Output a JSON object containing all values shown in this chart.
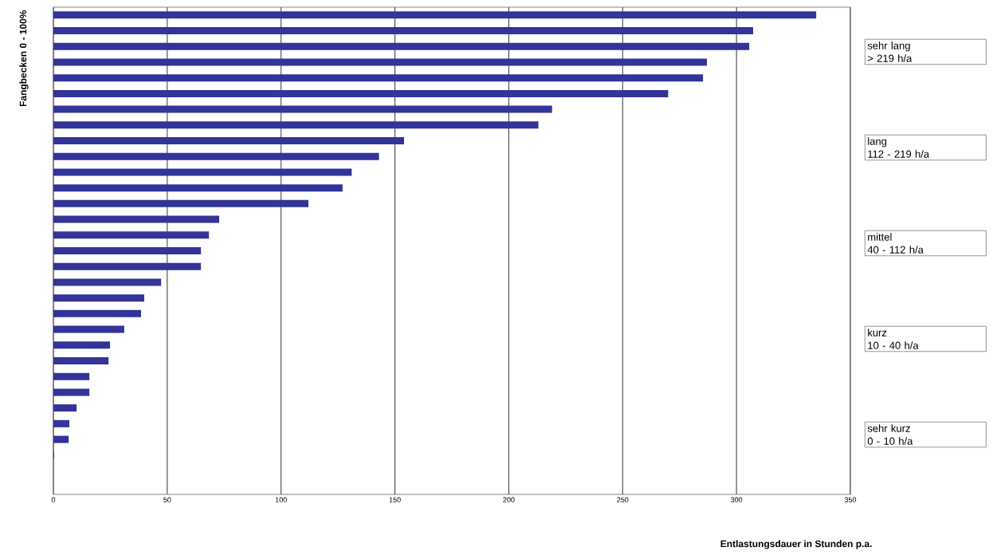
{
  "chart_data": {
    "type": "bar",
    "orientation": "horizontal",
    "xlabel": "Entlastungsdauer in Stunden p.a.",
    "ylabel": "Fangbecken 0 - 100%",
    "categories": [
      null,
      null,
      null,
      null,
      null,
      null,
      null,
      null,
      null,
      null,
      null,
      null,
      null,
      null,
      null,
      null,
      null,
      null,
      null,
      null,
      null,
      null,
      null,
      null,
      null,
      null,
      null,
      null,
      null,
      null,
      null
    ],
    "values": [
      335,
      307.3,
      305.6,
      287,
      285.3,
      270,
      219,
      213,
      154,
      143,
      131,
      127,
      112,
      72.8,
      68.3,
      64.8,
      64.8,
      47.3,
      39.9,
      38.5,
      31.1,
      24.9,
      24.2,
      15.8,
      15.8,
      10.2,
      7,
      6.7,
      0.3,
      0,
      0
    ],
    "color": "#333399",
    "xlim": [
      0,
      350
    ],
    "xticks": [
      0,
      50,
      100,
      150,
      200,
      250,
      300,
      350
    ],
    "grid": "x",
    "annotations": [
      "sehr lang\n> 219 h/a",
      "lang\n112 - 219 h/a",
      "mittel\n40 - 112 h/a",
      "kurz\n10 - 40 h/a",
      "sehr kurz\n0 - 10 h/a"
    ]
  }
}
